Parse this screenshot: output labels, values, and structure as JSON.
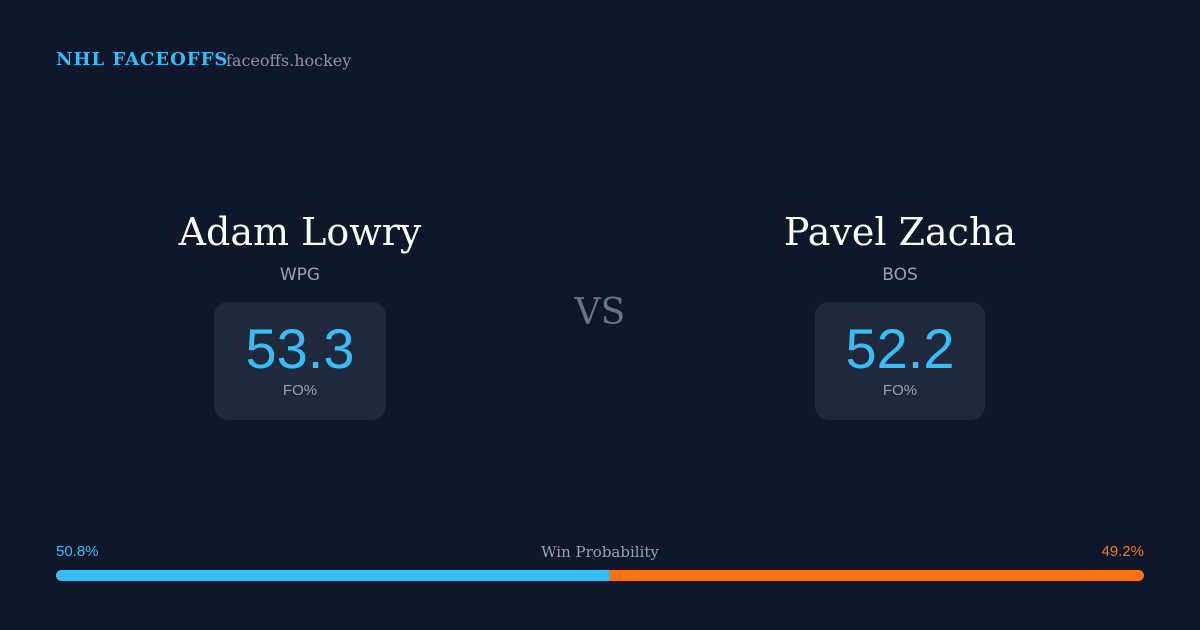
{
  "header": {
    "brand": "NHL FACEOFFS",
    "site": "faceoffs.hockey"
  },
  "players": [
    {
      "name": "Adam Lowry",
      "team": "WPG",
      "faceoff_pct": 53.3,
      "stat_label": "FO%"
    },
    {
      "name": "Pavel Zacha",
      "team": "BOS",
      "faceoff_pct": 52.2,
      "stat_label": "FO%"
    }
  ],
  "versus": "VS",
  "win_probability": {
    "label": "Win Probability",
    "left": {
      "value": 50.8,
      "label": "50.8%",
      "color": "#38bdf8"
    },
    "right": {
      "value": 49.2,
      "label": "49.2%",
      "color": "#f97316"
    }
  }
}
